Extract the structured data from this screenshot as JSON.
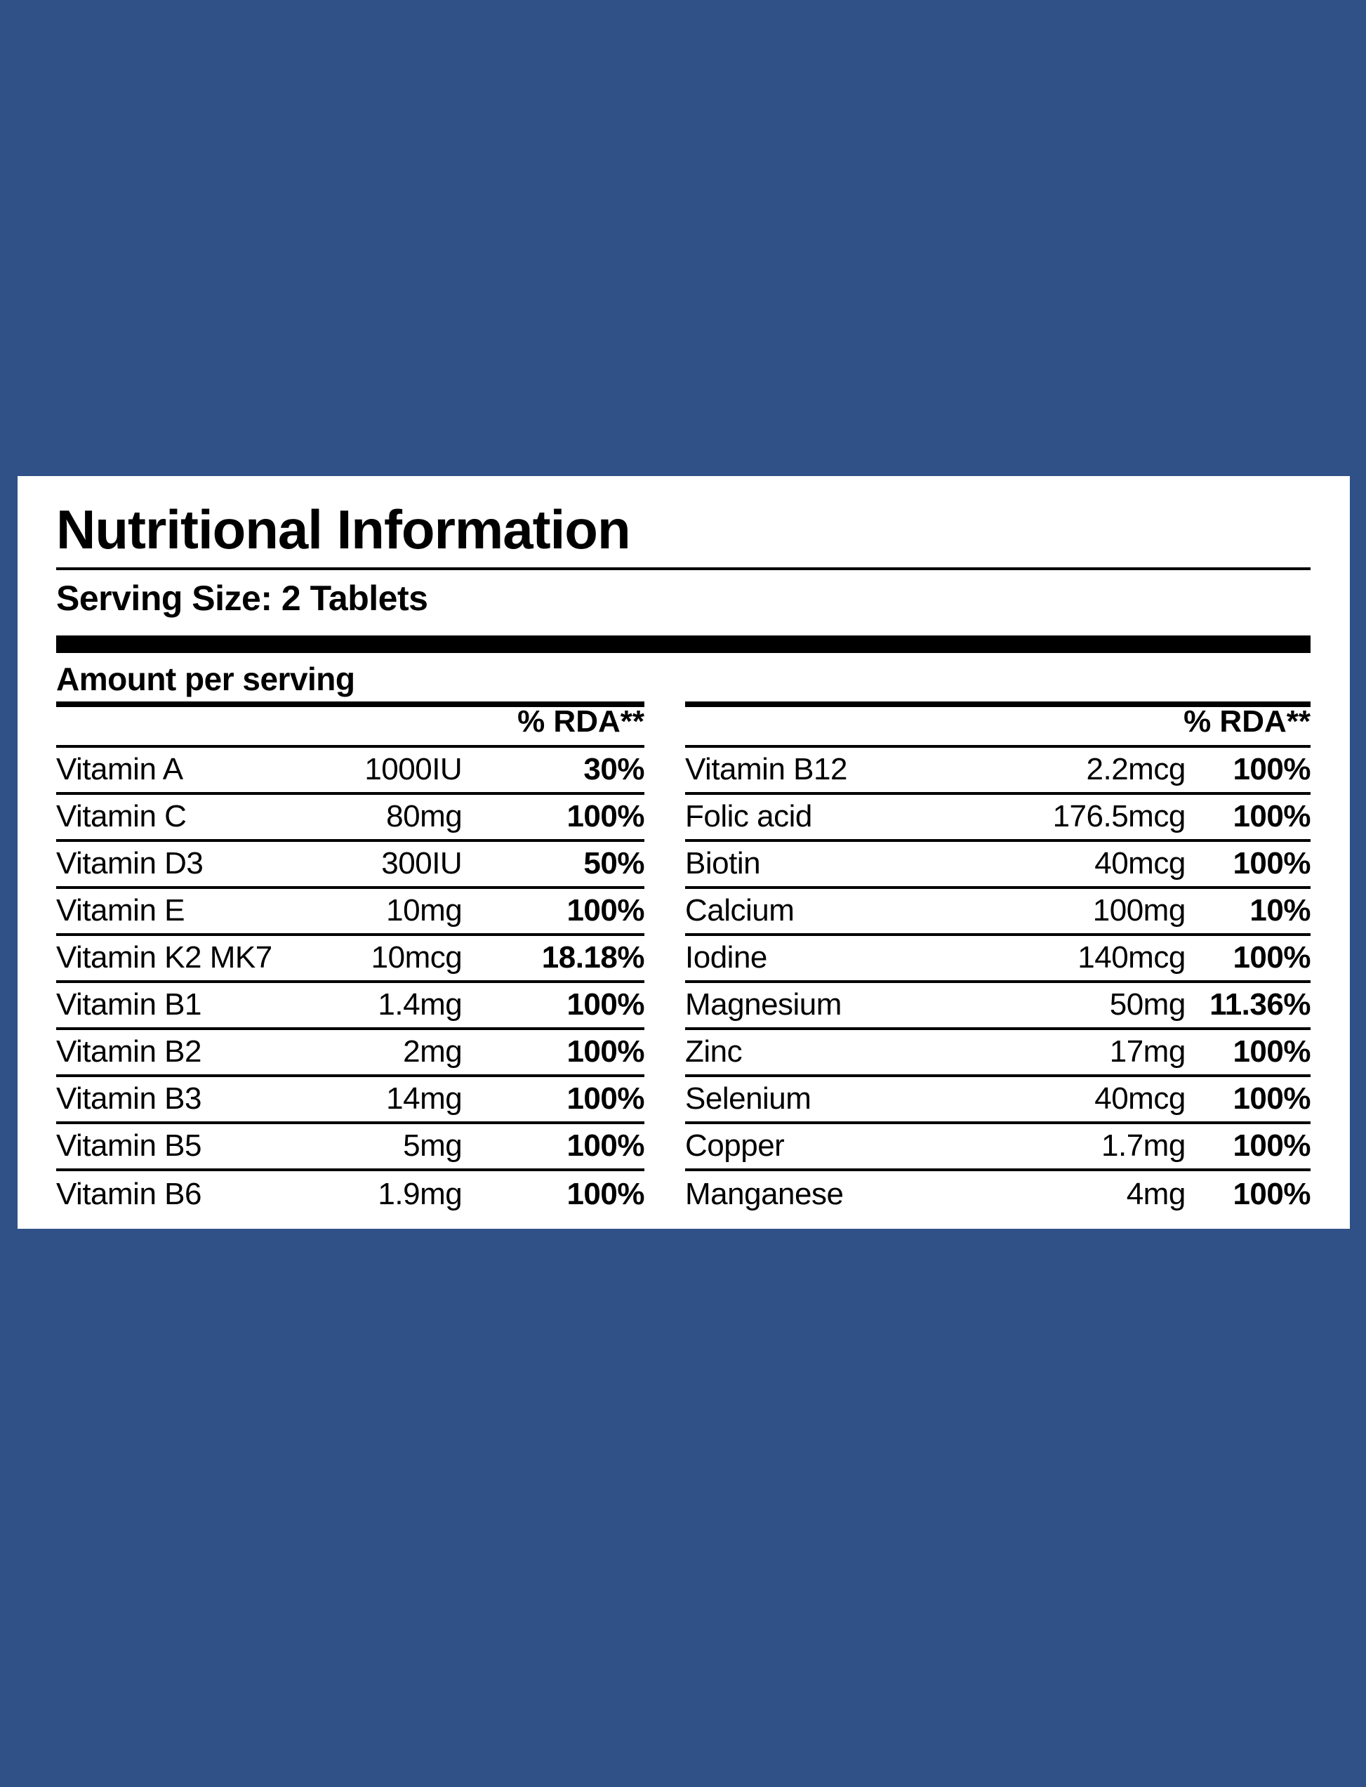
{
  "label": {
    "title": "Nutritional Information",
    "serving_size": "Serving Size: 2 Tablets",
    "amount_per_serving": "Amount per serving"
  },
  "colors": {
    "background": "#2F5187",
    "card": "#FFFFFF",
    "text": "#000000"
  },
  "tables": [
    {
      "rda_header": "% RDA**",
      "rows": [
        {
          "name": "Vitamin A",
          "amount": "1000IU",
          "rda": "30%"
        },
        {
          "name": "Vitamin C",
          "amount": "80mg",
          "rda": "100%"
        },
        {
          "name": "Vitamin D3",
          "amount": "300IU",
          "rda": "50%"
        },
        {
          "name": "Vitamin E",
          "amount": "10mg",
          "rda": "100%"
        },
        {
          "name": "Vitamin K2 MK7",
          "amount": "10mcg",
          "rda": "18.18%"
        },
        {
          "name": "Vitamin B1",
          "amount": "1.4mg",
          "rda": "100%"
        },
        {
          "name": "Vitamin B2",
          "amount": "2mg",
          "rda": "100%"
        },
        {
          "name": "Vitamin B3",
          "amount": "14mg",
          "rda": "100%"
        },
        {
          "name": "Vitamin B5",
          "amount": "5mg",
          "rda": "100%"
        },
        {
          "name": "Vitamin B6",
          "amount": "1.9mg",
          "rda": "100%"
        }
      ]
    },
    {
      "rda_header": "% RDA**",
      "rows": [
        {
          "name": "Vitamin B12",
          "amount": "2.2mcg",
          "rda": "100%"
        },
        {
          "name": "Folic acid",
          "amount": "176.5mcg",
          "rda": "100%"
        },
        {
          "name": "Biotin",
          "amount": "40mcg",
          "rda": "100%"
        },
        {
          "name": "Calcium",
          "amount": "100mg",
          "rda": "10%"
        },
        {
          "name": "Iodine",
          "amount": "140mcg",
          "rda": "100%"
        },
        {
          "name": "Magnesium",
          "amount": "50mg",
          "rda": "11.36%"
        },
        {
          "name": "Zinc",
          "amount": "17mg",
          "rda": "100%"
        },
        {
          "name": "Selenium",
          "amount": "40mcg",
          "rda": "100%"
        },
        {
          "name": "Copper",
          "amount": "1.7mg",
          "rda": "100%"
        },
        {
          "name": "Manganese",
          "amount": "4mg",
          "rda": "100%"
        }
      ]
    }
  ]
}
